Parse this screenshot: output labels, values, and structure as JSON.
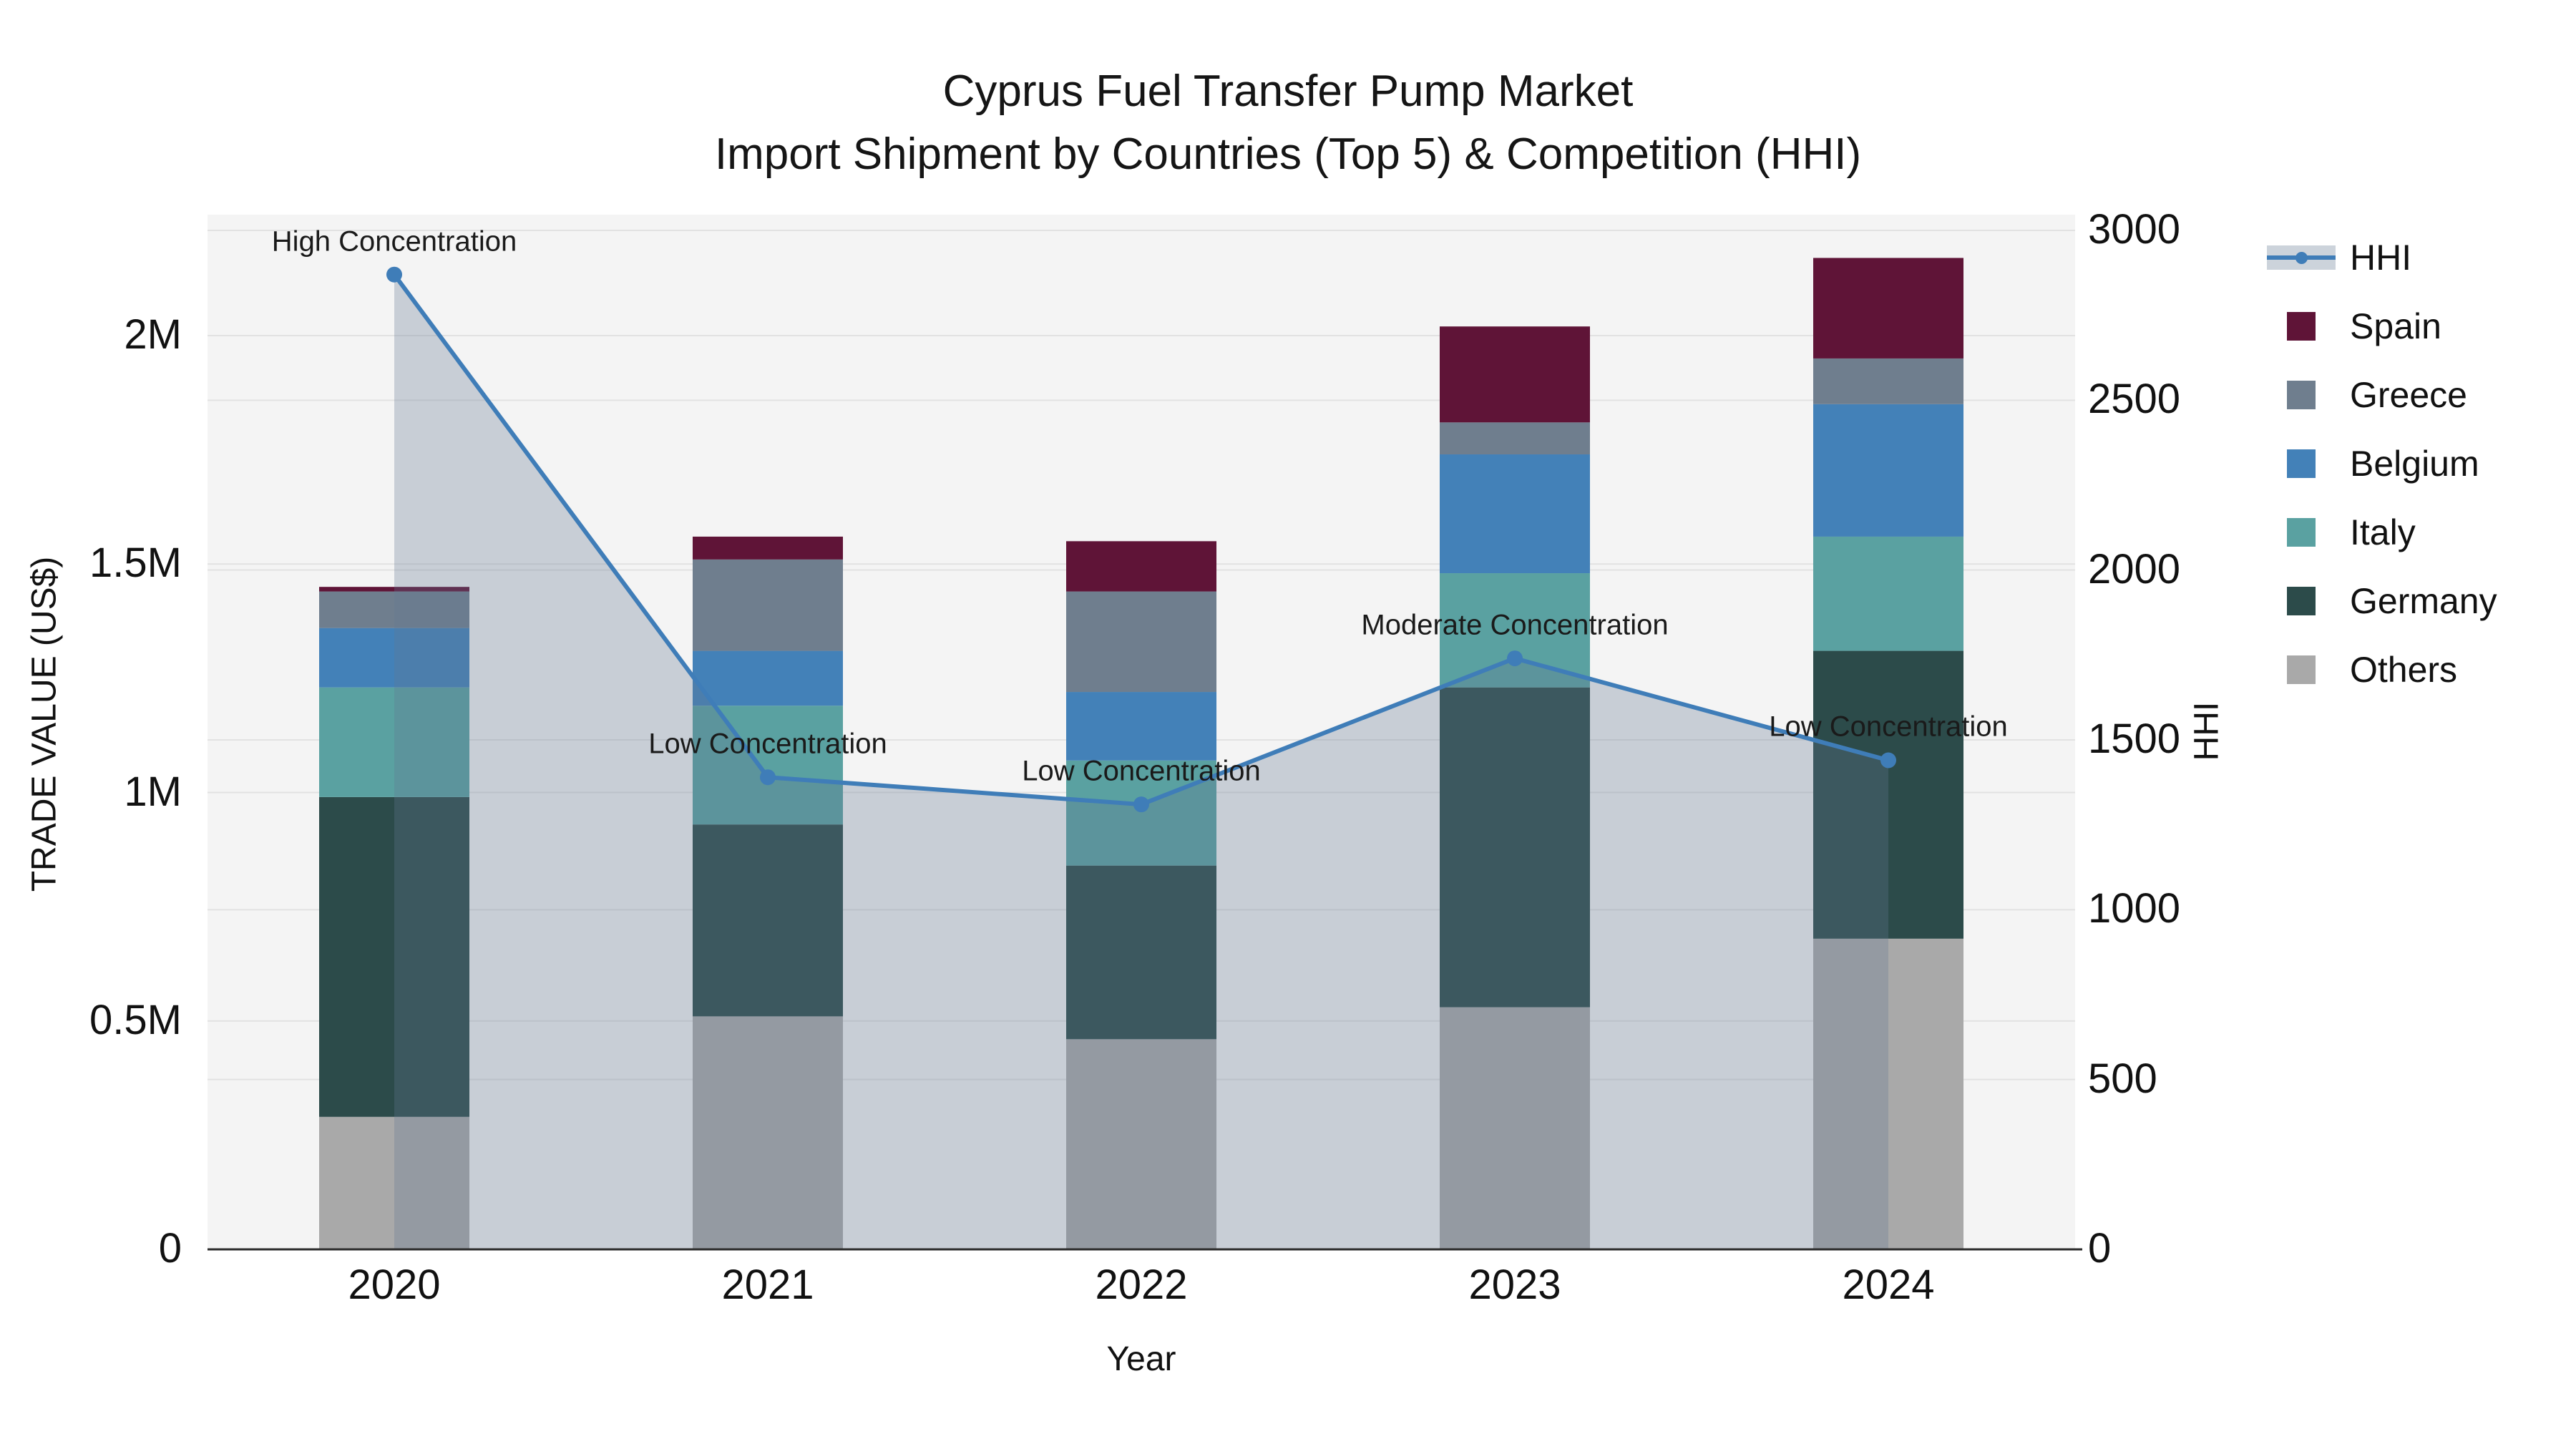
{
  "title": {
    "line1": "Cyprus Fuel Transfer Pump Market",
    "line2": "Import Shipment by Countries (Top 5) & Competition (HHI)"
  },
  "axes": {
    "left_label": "TRADE VALUE (US$)",
    "right_label": "HHI",
    "x_label": "Year"
  },
  "chart_data": {
    "type": "combo: stacked bar (left axis) + line with area fill (right axis)",
    "title": "Cyprus Fuel Transfer Pump Market — Import Shipment by Countries (Top 5) & Competition (HHI)",
    "categories": [
      "2020",
      "2021",
      "2022",
      "2023",
      "2024"
    ],
    "xlabel": "Year",
    "ylabel_left": "TRADE VALUE (US$)",
    "ylabel_right": "HHI",
    "ylim_left_musd": [
      0,
      2.2647
    ],
    "ylim_right": [
      0,
      3000
    ],
    "left_ticks": [
      {
        "label": "0",
        "value": 0
      },
      {
        "label": "0.5M",
        "value": 0.5
      },
      {
        "label": "1M",
        "value": 1
      },
      {
        "label": "1.5M",
        "value": 1.5
      },
      {
        "label": "2M",
        "value": 2
      }
    ],
    "right_ticks": [
      {
        "label": "0",
        "value": 0
      },
      {
        "label": "500",
        "value": 500
      },
      {
        "label": "1000",
        "value": 1000
      },
      {
        "label": "1500",
        "value": 1500
      },
      {
        "label": "2000",
        "value": 2000
      },
      {
        "label": "2500",
        "value": 2500
      },
      {
        "label": "3000",
        "value": 3000
      }
    ],
    "bar_unit": "million US$",
    "series": [
      {
        "name": "Others",
        "color": "#a9a9a9",
        "values": [
          0.29,
          0.51,
          0.46,
          0.53,
          0.68
        ]
      },
      {
        "name": "Germany",
        "color": "#2c4b4a",
        "values": [
          0.7,
          0.42,
          0.38,
          0.7,
          0.63
        ]
      },
      {
        "name": "Italy",
        "color": "#5aa1a1",
        "values": [
          0.24,
          0.26,
          0.23,
          0.25,
          0.25
        ]
      },
      {
        "name": "Belgium",
        "color": "#4381b8",
        "values": [
          0.13,
          0.12,
          0.15,
          0.26,
          0.29
        ]
      },
      {
        "name": "Greece",
        "color": "#6f7e8e",
        "values": [
          0.08,
          0.2,
          0.22,
          0.07,
          0.1
        ]
      },
      {
        "name": "Spain",
        "color": "#5f1437",
        "values": [
          0.01,
          0.05,
          0.11,
          0.21,
          0.22
        ]
      }
    ],
    "line_series": {
      "name": "HHI",
      "color": "#3f7db8",
      "area_fill": "rgba(100,118,145,0.30)",
      "values": [
        2870,
        1390,
        1310,
        1740,
        1440
      ]
    },
    "annotations": [
      {
        "category": "2020",
        "text": "High Concentration"
      },
      {
        "category": "2021",
        "text": "Low Concentration"
      },
      {
        "category": "2022",
        "text": "Low Concentration"
      },
      {
        "category": "2023",
        "text": "Moderate Concentration"
      },
      {
        "category": "2024",
        "text": "Low Concentration"
      }
    ],
    "legend_position": "right",
    "grid": true,
    "legend": [
      {
        "label": "HHI",
        "type": "line",
        "color": "#3f7db8"
      },
      {
        "label": "Spain",
        "type": "swatch",
        "color": "#5f1437"
      },
      {
        "label": "Greece",
        "type": "swatch",
        "color": "#6f7e8e"
      },
      {
        "label": "Belgium",
        "type": "swatch",
        "color": "#4381b8"
      },
      {
        "label": "Italy",
        "type": "swatch",
        "color": "#5aa1a1"
      },
      {
        "label": "Germany",
        "type": "swatch",
        "color": "#2c4b4a"
      },
      {
        "label": "Others",
        "type": "swatch",
        "color": "#a9a9a9"
      }
    ],
    "style": {
      "plot_bg": "#f4f4f4",
      "gridline": "#e2e2e2",
      "axis_line": "#2b2b2b",
      "text": "#111111"
    }
  }
}
